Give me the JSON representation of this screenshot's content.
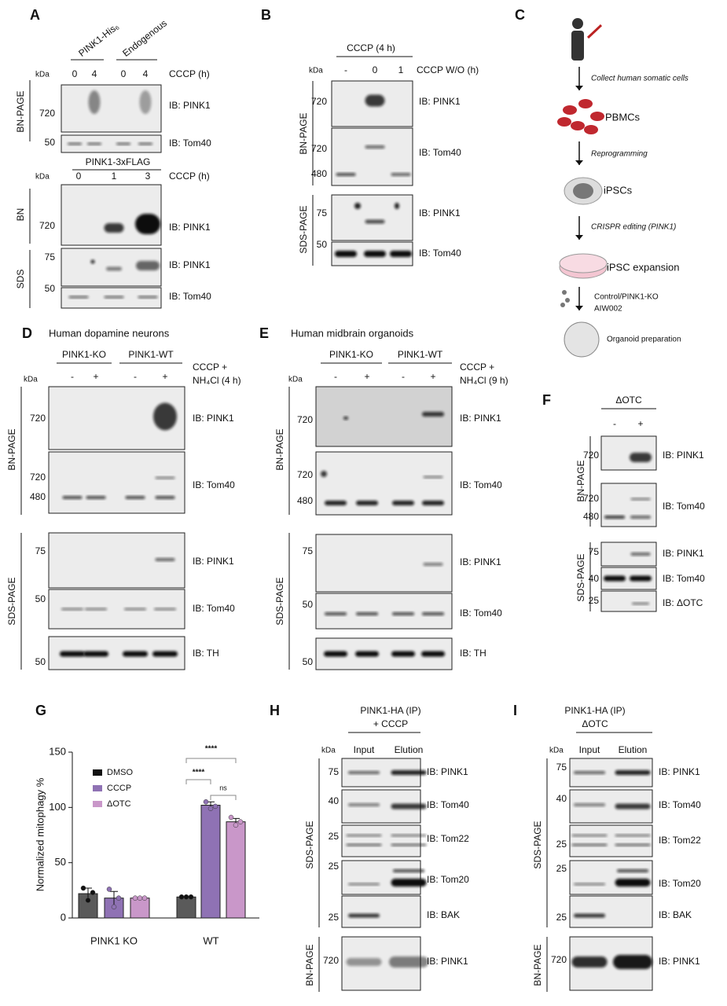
{
  "panel_a": {
    "letter": "A",
    "columns": [
      "PINK1-His₆",
      "Endogenous"
    ],
    "kda": "kDa",
    "lanes": [
      "0",
      "4",
      "0",
      "4"
    ],
    "condition": "CCCP (h)",
    "gel": "BN-PAGE",
    "markers": [
      "720",
      "50"
    ],
    "blots": [
      "IB: PINK1",
      "IB: Tom40"
    ],
    "lower": {
      "construct": "PINK1-3xFLAG",
      "kda": "kDa",
      "lanes": [
        "0",
        "1",
        "3"
      ],
      "condition": "CCCP (h)",
      "gels": [
        "BN",
        "SDS"
      ],
      "markers": [
        "720",
        "75",
        "50"
      ],
      "blots": [
        "IB: PINK1",
        "IB: PINK1",
        "IB: Tom40"
      ]
    }
  },
  "panel_b": {
    "letter": "B",
    "treatment": "CCCP (4 h)",
    "kda": "kDa",
    "lanes": [
      "-",
      "0",
      "1"
    ],
    "condition": "CCCP W/O (h)",
    "gels": [
      "BN-PAGE",
      "SDS-PAGE"
    ],
    "markers": [
      "720",
      "720",
      "480",
      "75",
      "50"
    ],
    "blots": [
      "IB: PINK1",
      "IB: Tom40",
      "IB: PINK1",
      "IB: Tom40"
    ]
  },
  "panel_c": {
    "letter": "C",
    "steps": [
      "Collect human somatic cells",
      "PBMCs",
      "Reprogramming",
      "iPSCs",
      "CRISPR editing (PINK1)",
      "iPSC expansion",
      "Control/PINK1-KO",
      "AIW002",
      "Organoid preparation"
    ]
  },
  "panel_d": {
    "letter": "D",
    "title": "Human dopamine neurons",
    "groups": [
      "PINK1-KO",
      "PINK1-WT"
    ],
    "kda": "kDa",
    "lanes": [
      "-",
      "+",
      "-",
      "+"
    ],
    "condition": [
      "CCCP +",
      "NH₄Cl (4 h)"
    ],
    "gels": [
      "BN-PAGE",
      "SDS-PAGE"
    ],
    "markers": [
      "720",
      "720",
      "480",
      "75",
      "50",
      "50"
    ],
    "blots": [
      "IB: PINK1",
      "IB: Tom40",
      "IB: PINK1",
      "IB: Tom40",
      "IB: TH"
    ]
  },
  "panel_e": {
    "letter": "E",
    "title": "Human midbrain organoids",
    "groups": [
      "PINK1-KO",
      "PINK1-WT"
    ],
    "kda": "kDa",
    "lanes": [
      "-",
      "+",
      "-",
      "+"
    ],
    "condition": [
      "CCCP +",
      "NH₄Cl (9 h)"
    ],
    "gels": [
      "BN-PAGE",
      "SDS-PAGE"
    ],
    "markers": [
      "720",
      "720",
      "480",
      "75",
      "50",
      "50"
    ],
    "blots": [
      "IB: PINK1",
      "IB: Tom40",
      "IB: PINK1",
      "IB: Tom40",
      "IB: TH"
    ]
  },
  "panel_f": {
    "letter": "F",
    "treatment": "ΔOTC",
    "lanes": [
      "-",
      "+"
    ],
    "gels": [
      "BN-PAGE",
      "SDS-PAGE"
    ],
    "markers": [
      "720",
      "720",
      "480",
      "75",
      "40",
      "25"
    ],
    "blots": [
      "IB: PINK1",
      "IB: Tom40",
      "IB: PINK1",
      "IB: Tom40",
      "IB: ΔOTC"
    ]
  },
  "panel_h": {
    "letter": "H",
    "title": [
      "PINK1-HA (IP)",
      "+ CCCP"
    ],
    "kda": "kDa",
    "lanes": [
      "Input",
      "Elution"
    ],
    "gels": [
      "SDS-PAGE",
      "BN-PAGE"
    ],
    "markers": [
      "75",
      "40",
      "25",
      "25",
      "25",
      "720"
    ],
    "blots": [
      "IB: PINK1",
      "IB: Tom40",
      "IB: Tom22",
      "IB: Tom20",
      "IB: BAK",
      "IB: PINK1"
    ]
  },
  "panel_i": {
    "letter": "I",
    "title": [
      "PINK1-HA (IP)",
      "ΔOTC"
    ],
    "kda": "kDa",
    "lanes": [
      "Input",
      "Elution"
    ],
    "gels": [
      "SDS-PAGE",
      "BN-PAGE"
    ],
    "markers": [
      "75",
      "40",
      "25",
      "25",
      "25",
      "720"
    ],
    "blots": [
      "IB: PINK1",
      "IB: Tom40",
      "IB: Tom22",
      "IB: Tom20",
      "IB: BAK",
      "IB: PINK1"
    ]
  },
  "chart_data": {
    "type": "bar",
    "panel_label": "G",
    "y_label": "Normalized mitophagy %",
    "categories": [
      "PINK1 KO",
      "WT"
    ],
    "series": [
      {
        "name": "DMSO",
        "color": "#5a5a5a",
        "values": [
          22,
          19
        ],
        "errors": [
          5,
          0.5
        ],
        "points": [
          [
            27,
            16,
            23
          ],
          [
            19,
            19,
            19
          ]
        ]
      },
      {
        "name": "CCCP",
        "color": "#8f72b4",
        "values": [
          18,
          102
        ],
        "errors": [
          6,
          3
        ],
        "points": [
          [
            26,
            10,
            18
          ],
          [
            105,
            99,
            101
          ]
        ]
      },
      {
        "name": "ΔOTC",
        "color": "#c997c9",
        "values": [
          18,
          87
        ],
        "errors": [
          0.5,
          3
        ],
        "points": [
          [
            18,
            18,
            18
          ],
          [
            91,
            84,
            87
          ]
        ]
      }
    ],
    "ylim": [
      0,
      150
    ],
    "yticks": [
      0,
      50,
      100,
      150
    ],
    "significance": [
      "****",
      "****",
      "ns"
    ]
  }
}
